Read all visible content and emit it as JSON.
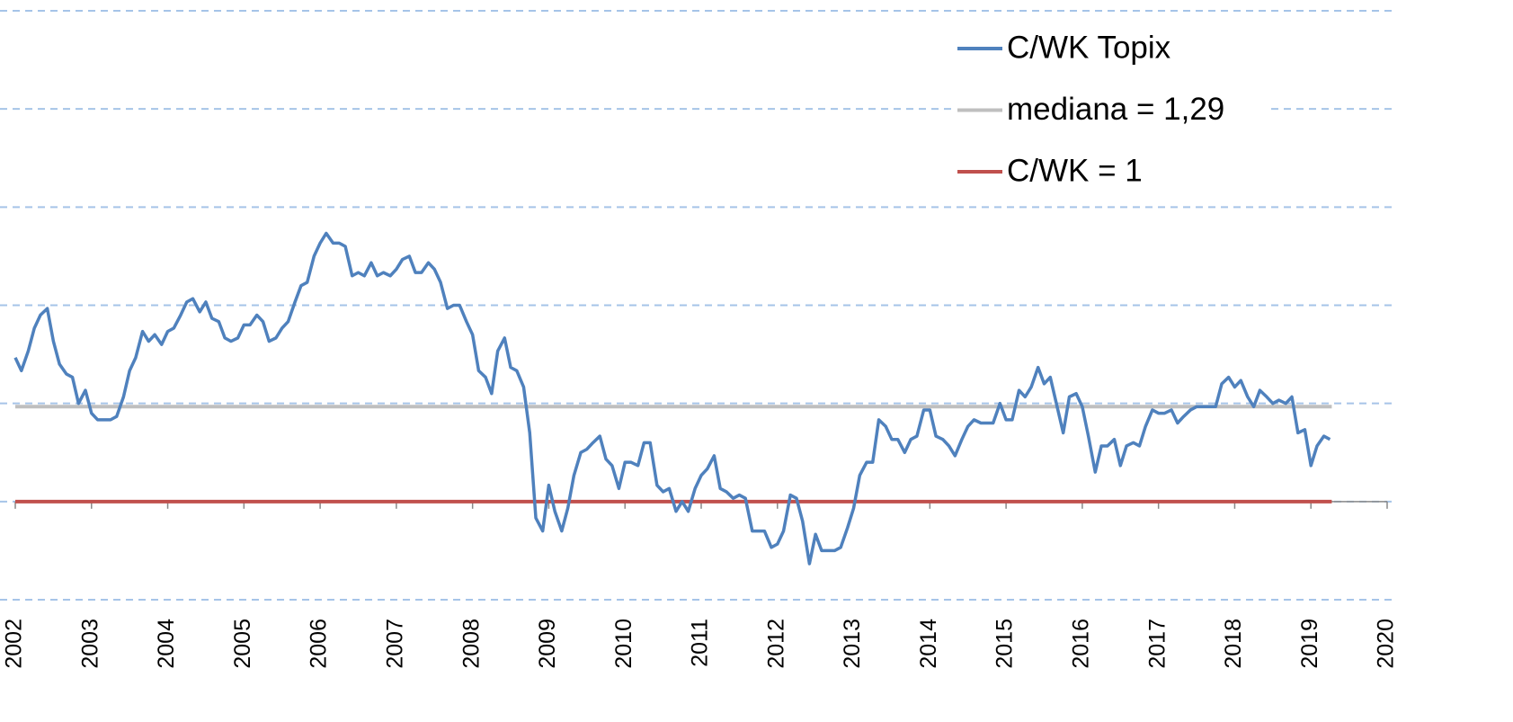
{
  "chart_data": {
    "type": "line",
    "x": [
      2002,
      2002.08,
      2002.17,
      2002.25,
      2002.33,
      2002.42,
      2002.5,
      2002.58,
      2002.67,
      2002.75,
      2002.83,
      2002.92,
      2003,
      2003.08,
      2003.17,
      2003.25,
      2003.33,
      2003.42,
      2003.5,
      2003.58,
      2003.67,
      2003.75,
      2003.83,
      2003.92,
      2004,
      2004.08,
      2004.17,
      2004.25,
      2004.33,
      2004.42,
      2004.5,
      2004.58,
      2004.67,
      2004.75,
      2004.83,
      2004.92,
      2005,
      2005.08,
      2005.17,
      2005.25,
      2005.33,
      2005.42,
      2005.5,
      2005.58,
      2005.67,
      2005.75,
      2005.83,
      2005.92,
      2006,
      2006.08,
      2006.17,
      2006.25,
      2006.33,
      2006.42,
      2006.5,
      2006.58,
      2006.67,
      2006.75,
      2006.83,
      2006.92,
      2007,
      2007.08,
      2007.17,
      2007.25,
      2007.33,
      2007.42,
      2007.5,
      2007.58,
      2007.67,
      2007.75,
      2007.83,
      2007.92,
      2008,
      2008.08,
      2008.17,
      2008.25,
      2008.33,
      2008.42,
      2008.5,
      2008.58,
      2008.67,
      2008.75,
      2008.83,
      2008.92,
      2009,
      2009.08,
      2009.17,
      2009.25,
      2009.33,
      2009.42,
      2009.5,
      2009.58,
      2009.67,
      2009.75,
      2009.83,
      2009.92,
      2010,
      2010.08,
      2010.17,
      2010.25,
      2010.33,
      2010.42,
      2010.5,
      2010.58,
      2010.67,
      2010.75,
      2010.83,
      2010.92,
      2011,
      2011.08,
      2011.17,
      2011.25,
      2011.33,
      2011.42,
      2011.5,
      2011.58,
      2011.67,
      2011.75,
      2011.83,
      2011.92,
      2012,
      2012.08,
      2012.17,
      2012.25,
      2012.33,
      2012.42,
      2012.5,
      2012.58,
      2012.67,
      2012.75,
      2012.83,
      2012.92,
      2013,
      2013.08,
      2013.17,
      2013.25,
      2013.33,
      2013.42,
      2013.5,
      2013.58,
      2013.67,
      2013.75,
      2013.83,
      2013.92,
      2014,
      2014.08,
      2014.17,
      2014.25,
      2014.33,
      2014.42,
      2014.5,
      2014.58,
      2014.67,
      2014.75,
      2014.83,
      2014.92,
      2015,
      2015.08,
      2015.17,
      2015.25,
      2015.33,
      2015.42,
      2015.5,
      2015.58,
      2015.67,
      2015.75,
      2015.83,
      2015.92,
      2016,
      2016.08,
      2016.17,
      2016.25,
      2016.33,
      2016.42,
      2016.5,
      2016.58,
      2016.67,
      2016.75,
      2016.83,
      2016.92,
      2017,
      2017.08,
      2017.17,
      2017.25,
      2017.33,
      2017.42,
      2017.5,
      2017.58,
      2017.67,
      2017.75,
      2017.83,
      2017.92,
      2018,
      2018.08,
      2018.17,
      2018.25,
      2018.33,
      2018.42,
      2018.5,
      2018.58,
      2018.67,
      2018.75,
      2018.83,
      2018.92,
      2019,
      2019.08,
      2019.17,
      2019.25
    ],
    "series": [
      {
        "name": "C/WK Topix",
        "color": "#4f81bd",
        "values": [
          1.44,
          1.4,
          1.46,
          1.53,
          1.57,
          1.59,
          1.49,
          1.42,
          1.39,
          1.38,
          1.3,
          1.34,
          1.27,
          1.25,
          1.25,
          1.25,
          1.26,
          1.32,
          1.4,
          1.44,
          1.52,
          1.49,
          1.51,
          1.48,
          1.52,
          1.53,
          1.57,
          1.61,
          1.62,
          1.58,
          1.61,
          1.56,
          1.55,
          1.5,
          1.49,
          1.5,
          1.54,
          1.54,
          1.57,
          1.55,
          1.49,
          1.5,
          1.53,
          1.55,
          1.61,
          1.66,
          1.67,
          1.75,
          1.79,
          1.82,
          1.79,
          1.79,
          1.78,
          1.69,
          1.7,
          1.69,
          1.73,
          1.69,
          1.7,
          1.69,
          1.71,
          1.74,
          1.75,
          1.7,
          1.7,
          1.73,
          1.71,
          1.67,
          1.59,
          1.6,
          1.6,
          1.55,
          1.51,
          1.4,
          1.38,
          1.33,
          1.46,
          1.5,
          1.41,
          1.4,
          1.35,
          1.21,
          0.95,
          0.91,
          1.05,
          0.97,
          0.91,
          0.98,
          1.08,
          1.15,
          1.16,
          1.18,
          1.2,
          1.13,
          1.11,
          1.04,
          1.12,
          1.12,
          1.11,
          1.18,
          1.18,
          1.05,
          1.03,
          1.04,
          0.97,
          1.0,
          0.97,
          1.04,
          1.08,
          1.1,
          1.14,
          1.04,
          1.03,
          1.01,
          1.02,
          1.01,
          0.91,
          0.91,
          0.91,
          0.86,
          0.87,
          0.91,
          1.02,
          1.01,
          0.94,
          0.81,
          0.9,
          0.85,
          0.85,
          0.85,
          0.86,
          0.92,
          0.98,
          1.08,
          1.12,
          1.12,
          1.25,
          1.23,
          1.19,
          1.19,
          1.15,
          1.19,
          1.2,
          1.28,
          1.28,
          1.2,
          1.19,
          1.17,
          1.14,
          1.19,
          1.23,
          1.25,
          1.24,
          1.24,
          1.24,
          1.3,
          1.25,
          1.25,
          1.34,
          1.32,
          1.35,
          1.41,
          1.36,
          1.38,
          1.29,
          1.21,
          1.32,
          1.33,
          1.29,
          1.2,
          1.09,
          1.17,
          1.17,
          1.19,
          1.11,
          1.17,
          1.18,
          1.17,
          1.23,
          1.28,
          1.27,
          1.27,
          1.28,
          1.24,
          1.26,
          1.28,
          1.29,
          1.29,
          1.29,
          1.29,
          1.36,
          1.38,
          1.35,
          1.37,
          1.32,
          1.29,
          1.34,
          1.32,
          1.3,
          1.31,
          1.3,
          1.32,
          1.21,
          1.22,
          1.11,
          1.17,
          1.2,
          1.19
        ]
      }
    ],
    "hlines": [
      {
        "name": "mediana = 1,29",
        "value": 1.29,
        "color": "#bfbfbf"
      },
      {
        "name": "C/WK = 1",
        "value": 1,
        "color": "#c0504d"
      }
    ],
    "xlim": [
      2002,
      2020
    ],
    "xticks": [
      2002,
      2003,
      2004,
      2005,
      2006,
      2007,
      2008,
      2009,
      2010,
      2011,
      2012,
      2013,
      2014,
      2015,
      2016,
      2017,
      2018,
      2019,
      2020
    ],
    "ylim": [
      0.7,
      2.5
    ],
    "yticks": [
      0.7,
      1,
      1.3,
      1.6,
      1.9,
      2.2,
      2.5
    ],
    "grid": true
  }
}
